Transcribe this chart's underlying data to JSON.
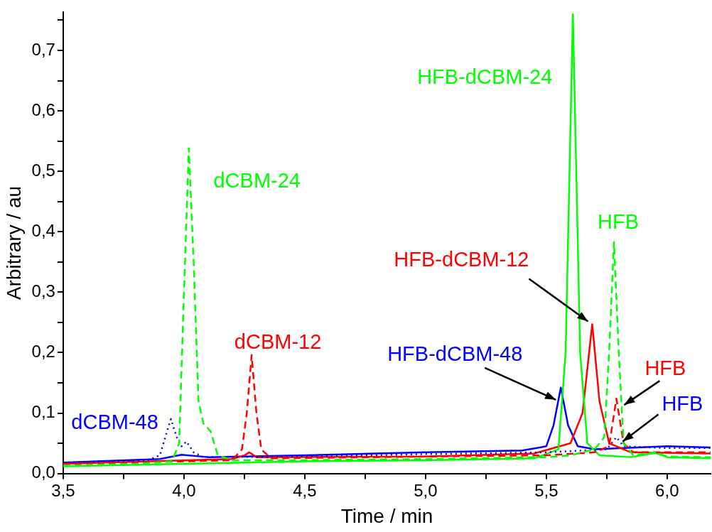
{
  "chart_data": {
    "type": "line",
    "xlabel": "Time / min",
    "ylabel": "Arbitrary / au",
    "xlim": [
      3.5,
      6.18
    ],
    "ylim": [
      0,
      0.763
    ],
    "xticks": [
      {
        "value": 3.5,
        "label": "3,5"
      },
      {
        "value": 3.75,
        "label": null
      },
      {
        "value": 4.0,
        "label": "4,0"
      },
      {
        "value": 4.25,
        "label": null
      },
      {
        "value": 4.5,
        "label": "4,5"
      },
      {
        "value": 4.75,
        "label": null
      },
      {
        "value": 5.0,
        "label": "5,0"
      },
      {
        "value": 5.25,
        "label": null
      },
      {
        "value": 5.5,
        "label": "5,5"
      },
      {
        "value": 5.75,
        "label": null
      },
      {
        "value": 6.0,
        "label": "6,0"
      }
    ],
    "yticks": [
      {
        "value": 0,
        "label": "0,0"
      },
      {
        "value": 0.05,
        "label": null
      },
      {
        "value": 0.1,
        "label": "0,1"
      },
      {
        "value": 0.15,
        "label": null
      },
      {
        "value": 0.2,
        "label": "0,2"
      },
      {
        "value": 0.25,
        "label": null
      },
      {
        "value": 0.3,
        "label": "0,3"
      },
      {
        "value": 0.35,
        "label": null
      },
      {
        "value": 0.4,
        "label": "0,4"
      },
      {
        "value": 0.45,
        "label": null
      },
      {
        "value": 0.5,
        "label": "0,5"
      },
      {
        "value": 0.55,
        "label": null
      },
      {
        "value": 0.6,
        "label": "0,6"
      },
      {
        "value": 0.65,
        "label": null
      },
      {
        "value": 0.7,
        "label": "0,7"
      },
      {
        "value": 0.75,
        "label": null
      }
    ],
    "grid": false,
    "legend": false,
    "marker": "none",
    "series": [
      {
        "color": "#00ff00",
        "line_style": "dashed",
        "x": [
          3.5,
          3.8,
          3.95,
          3.98,
          4.0,
          4.02,
          4.04,
          4.06,
          4.08,
          4.11,
          4.14,
          4.2,
          4.5,
          5.0,
          5.5,
          5.6,
          5.7,
          5.74,
          5.76,
          5.78,
          5.8,
          5.82,
          5.86,
          5.95,
          6.0,
          6.18
        ],
        "values": [
          0.013,
          0.016,
          0.02,
          0.05,
          0.3,
          0.538,
          0.35,
          0.12,
          0.083,
          0.07,
          0.03,
          0.022,
          0.022,
          0.024,
          0.027,
          0.03,
          0.04,
          0.06,
          0.2,
          0.383,
          0.2,
          0.05,
          0.03,
          0.035,
          0.028,
          0.027
        ]
      },
      {
        "color": "#ff0000",
        "line_style": "dashed",
        "x": [
          3.5,
          4.0,
          4.2,
          4.24,
          4.26,
          4.28,
          4.3,
          4.32,
          4.36,
          5.0,
          5.5,
          5.7,
          5.76,
          5.79,
          5.82,
          5.86,
          6.18
        ],
        "values": [
          0.016,
          0.02,
          0.022,
          0.04,
          0.1,
          0.196,
          0.1,
          0.04,
          0.025,
          0.028,
          0.03,
          0.035,
          0.045,
          0.124,
          0.05,
          0.035,
          0.035
        ]
      },
      {
        "color": "#0000ff",
        "line_style": "dotted",
        "x": [
          3.5,
          3.85,
          3.9,
          3.93,
          3.946,
          3.97,
          3.99,
          4.01,
          4.04,
          4.08,
          4.5,
          5.0,
          5.5,
          5.75,
          5.79,
          5.82,
          6.0,
          6.18
        ],
        "values": [
          0.018,
          0.022,
          0.03,
          0.07,
          0.09,
          0.06,
          0.045,
          0.053,
          0.035,
          0.027,
          0.028,
          0.032,
          0.035,
          0.04,
          0.06,
          0.045,
          0.042,
          0.042
        ]
      },
      {
        "color": "#00ff00",
        "line_style": "solid",
        "x": [
          3.5,
          4.0,
          4.5,
          5.0,
          5.45,
          5.55,
          5.58,
          5.61,
          5.64,
          5.67,
          5.72,
          5.85,
          5.95,
          6.0,
          6.18
        ],
        "values": [
          0.012,
          0.016,
          0.02,
          0.022,
          0.025,
          0.04,
          0.2,
          0.76,
          0.2,
          0.05,
          0.03,
          0.027,
          0.034,
          0.027,
          0.025
        ]
      },
      {
        "color": "#ff0000",
        "line_style": "solid",
        "x": [
          3.5,
          4.2,
          4.25,
          4.27,
          4.3,
          5.0,
          5.45,
          5.6,
          5.65,
          5.69,
          5.72,
          5.76,
          5.85,
          6.18
        ],
        "values": [
          0.016,
          0.024,
          0.03,
          0.035,
          0.027,
          0.028,
          0.033,
          0.05,
          0.1,
          0.247,
          0.12,
          0.05,
          0.035,
          0.033
        ]
      },
      {
        "color": "#0000ff",
        "line_style": "solid",
        "x": [
          3.5,
          3.9,
          3.99,
          4.1,
          4.5,
          5.0,
          5.4,
          5.5,
          5.53,
          5.56,
          5.59,
          5.63,
          5.7,
          6.0,
          6.18
        ],
        "values": [
          0.018,
          0.024,
          0.031,
          0.027,
          0.03,
          0.035,
          0.038,
          0.045,
          0.08,
          0.142,
          0.08,
          0.045,
          0.04,
          0.045,
          0.043
        ]
      }
    ],
    "annotations": [
      {
        "text": "dCBM-48",
        "x": 3.946,
        "y": 0.09
      },
      {
        "text": "dCBM-24",
        "x": 4.02,
        "y": 0.538
      },
      {
        "text": "dCBM-12",
        "x": 4.28,
        "y": 0.196
      },
      {
        "text": "HFB-dCBM-24",
        "x": 5.61,
        "y": 0.76
      },
      {
        "text": "HFB",
        "x": 5.78,
        "y": 0.383
      },
      {
        "text": "HFB-dCBM-12",
        "x": 5.69,
        "y": 0.247
      },
      {
        "text": "HFB-dCBM-48",
        "x": 5.56,
        "y": 0.142
      },
      {
        "text": "HFB",
        "x": 5.79,
        "y": 0.124
      },
      {
        "text": "HFB",
        "x": 5.79,
        "y": 0.06
      }
    ]
  }
}
